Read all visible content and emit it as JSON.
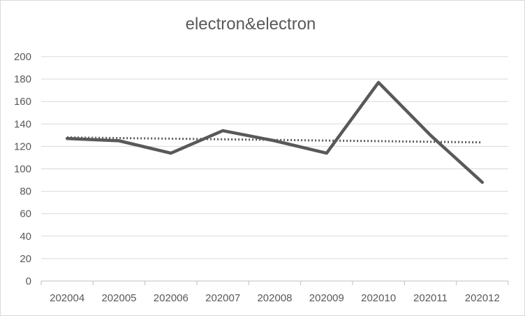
{
  "chart_data": {
    "type": "line",
    "title": "electron&electron",
    "xlabel": "",
    "ylabel": "",
    "categories": [
      "202004",
      "202005",
      "202006",
      "202007",
      "202008",
      "202009",
      "202010",
      "202011",
      "202012"
    ],
    "series": [
      {
        "values": [
          127,
          125,
          114,
          134,
          125,
          114,
          177,
          130,
          88
        ],
        "color": "#595959"
      }
    ],
    "trendline": {
      "type": "linear",
      "style": "dotted",
      "color": "#595959",
      "values": [
        128,
        127.4,
        126.9,
        126.3,
        125.8,
        125.2,
        124.7,
        124.1,
        123.6
      ]
    },
    "ylim": [
      0,
      200
    ],
    "yticks": [
      0,
      20,
      40,
      60,
      80,
      100,
      120,
      140,
      160,
      180,
      200
    ],
    "grid": true,
    "legend": "none",
    "colors": {
      "gridline": "#d9d9d9",
      "axis": "#bfbfbf",
      "text": "#595959"
    }
  }
}
